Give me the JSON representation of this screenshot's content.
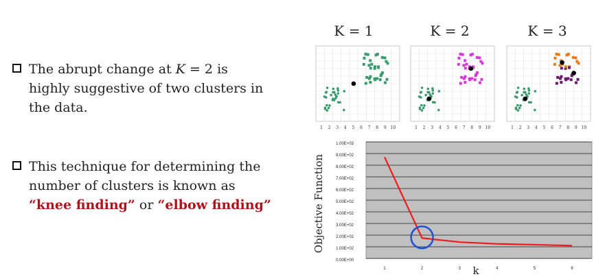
{
  "bullets": [
    {
      "pre": "The abrupt change at ",
      "k": "K",
      "post": " = 2 is",
      "l2": "highly suggestive of two clusters in",
      "l3": "the data."
    },
    {
      "l1": "This technique for determining the",
      "l2": "number of clusters is known as",
      "q1": "“knee finding”",
      "or": " or ",
      "q2": "“elbow finding”"
    }
  ],
  "panels": [
    {
      "title": "K = 1"
    },
    {
      "title": "K = 2"
    },
    {
      "title": "K = 3"
    }
  ],
  "scatter_ticks": [
    "1",
    "2",
    "3",
    "4",
    "5",
    "6",
    "7",
    "8",
    "9",
    "10"
  ],
  "chart_data": {
    "type": "line",
    "x": [
      1,
      2,
      3,
      4,
      5,
      6
    ],
    "series": [
      {
        "values": [
          870,
          175,
          140,
          125,
          118,
          110
        ]
      }
    ],
    "ylim": [
      0,
      1000
    ],
    "yticks": [
      "0.00E+00",
      "1.00E+02",
      "2.00E+02",
      "3.00E+02",
      "4.00E+02",
      "5.00E+02",
      "6.00E+02",
      "7.00E+02",
      "8.00E+02",
      "9.00E+02",
      "1.00E+03"
    ],
    "xticks": [
      "1",
      "2",
      "3",
      "4",
      "5",
      "6"
    ],
    "xlabel": "k",
    "ylabel": "Objective Function",
    "highlight_x": 2,
    "colors": {
      "line": "#ee1c1c",
      "plot_bg": "#c0c0c0",
      "circle": "#1f4fd8"
    }
  }
}
